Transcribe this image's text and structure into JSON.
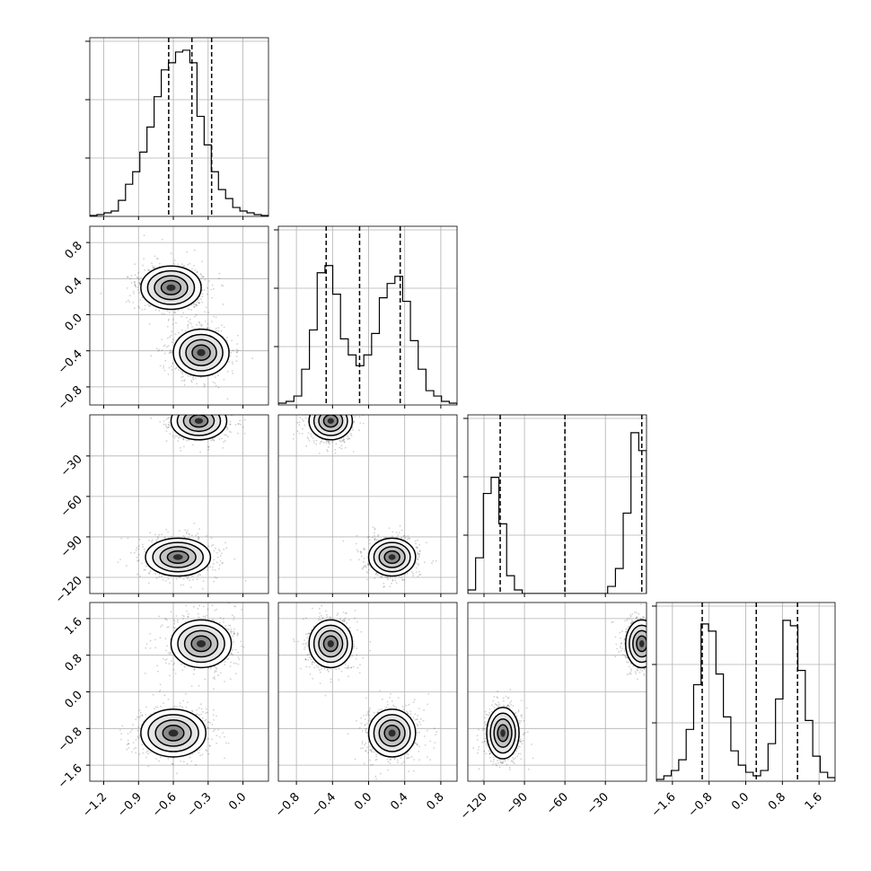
{
  "chart_data": {
    "type": "corner",
    "description_free": true,
    "grid": true,
    "parameters": [
      {
        "id": "p0",
        "range": [
          -1.32,
          0.22
        ],
        "ticks": [
          -1.2,
          -0.9,
          -0.6,
          -0.3,
          0.0
        ],
        "tick_labels": [
          "−1.2",
          "−0.9",
          "−0.6",
          "−0.3",
          "0.0"
        ],
        "quantiles": [
          -0.64,
          -0.44,
          -0.27
        ],
        "histogram": [
          0.005,
          0.01,
          0.02,
          0.03,
          0.09,
          0.18,
          0.25,
          0.36,
          0.5,
          0.67,
          0.82,
          0.86,
          0.92,
          0.93,
          0.86,
          0.56,
          0.4,
          0.25,
          0.15,
          0.1,
          0.05,
          0.03,
          0.02,
          0.01,
          0.005
        ]
      },
      {
        "id": "p1",
        "range": [
          -1.0,
          0.98
        ],
        "ticks": [
          -0.8,
          -0.4,
          0.0,
          0.4,
          0.8
        ],
        "tick_labels": [
          "−0.8",
          "−0.4",
          "0.0",
          "0.4",
          "0.8"
        ],
        "quantiles": [
          -0.47,
          -0.1,
          0.35
        ],
        "histogram": [
          0.01,
          0.02,
          0.05,
          0.2,
          0.42,
          0.74,
          0.78,
          0.62,
          0.37,
          0.28,
          0.22,
          0.28,
          0.4,
          0.6,
          0.68,
          0.72,
          0.58,
          0.36,
          0.2,
          0.08,
          0.05,
          0.02,
          0.01
        ]
      },
      {
        "id": "p2",
        "range": [
          -132,
          0.5
        ],
        "ticks": [
          -120,
          -90,
          -60,
          -30
        ],
        "tick_labels": [
          "−120",
          "−90",
          "−60",
          "−30"
        ],
        "quantiles": [
          -108,
          -60,
          -3
        ],
        "histogram": [
          0.02,
          0.2,
          0.56,
          0.65,
          0.39,
          0.1,
          0.02,
          0.0,
          0.0,
          0.0,
          0.0,
          0.0,
          0.0,
          0.0,
          0.0,
          0.0,
          0.0,
          0.0,
          0.04,
          0.14,
          0.45,
          0.9,
          0.8
        ]
      },
      {
        "id": "p3",
        "range": [
          -1.95,
          1.95
        ],
        "ticks": [
          -1.6,
          -0.8,
          0.0,
          0.8,
          1.6
        ],
        "tick_labels": [
          "−1.6",
          "−0.8",
          "0.0",
          "0.8",
          "1.6"
        ],
        "quantiles": [
          -0.95,
          0.23,
          1.13
        ],
        "histogram": [
          0.01,
          0.03,
          0.06,
          0.12,
          0.29,
          0.54,
          0.88,
          0.84,
          0.6,
          0.36,
          0.17,
          0.09,
          0.05,
          0.03,
          0.06,
          0.21,
          0.46,
          0.9,
          0.87,
          0.62,
          0.34,
          0.14,
          0.05,
          0.02
        ]
      }
    ],
    "joint": [
      {
        "row": 1,
        "col": 0,
        "modes": [
          {
            "x": -0.62,
            "y": 0.3,
            "sx": 0.13,
            "sy": 0.12
          },
          {
            "x": -0.36,
            "y": -0.42,
            "sx": 0.12,
            "sy": 0.13
          }
        ]
      },
      {
        "row": 2,
        "col": 0,
        "modes": [
          {
            "x": -0.38,
            "y": -4,
            "sx": 0.12,
            "sy": 7
          },
          {
            "x": -0.56,
            "y": -105,
            "sx": 0.14,
            "sy": 7
          }
        ]
      },
      {
        "row": 2,
        "col": 1,
        "modes": [
          {
            "x": -0.42,
            "y": -4,
            "sx": 0.12,
            "sy": 7
          },
          {
            "x": 0.26,
            "y": -105,
            "sx": 0.13,
            "sy": 7
          }
        ]
      },
      {
        "row": 3,
        "col": 0,
        "modes": [
          {
            "x": -0.36,
            "y": 1.05,
            "sx": 0.13,
            "sy": 0.26
          },
          {
            "x": -0.6,
            "y": -0.9,
            "sx": 0.14,
            "sy": 0.26
          }
        ]
      },
      {
        "row": 3,
        "col": 1,
        "modes": [
          {
            "x": -0.42,
            "y": 1.05,
            "sx": 0.12,
            "sy": 0.26
          },
          {
            "x": 0.26,
            "y": -0.9,
            "sx": 0.13,
            "sy": 0.26
          }
        ]
      },
      {
        "row": 3,
        "col": 2,
        "modes": [
          {
            "x": -3,
            "y": 1.05,
            "sx": 6,
            "sy": 0.26
          },
          {
            "x": -106,
            "y": -0.9,
            "sx": 6,
            "sy": 0.28
          }
        ]
      }
    ]
  }
}
